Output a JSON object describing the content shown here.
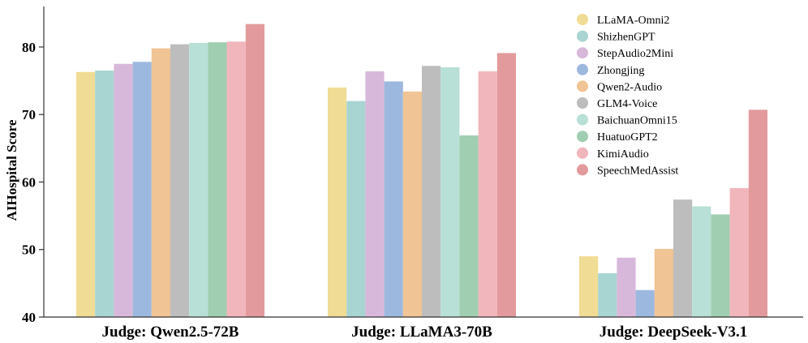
{
  "chart_data": {
    "type": "bar",
    "title": "",
    "xlabel": "",
    "ylabel": "AIHospital Score",
    "ylim": [
      40,
      86
    ],
    "yticks": [
      40,
      50,
      60,
      70,
      80
    ],
    "grid": false,
    "legend_position": "top-right",
    "categories": [
      "Judge: Qwen2.5-72B",
      "Judge: LLaMA3-70B",
      "Judge: DeepSeek-V3.1"
    ],
    "series": [
      {
        "name": "LLaMA-Omni2",
        "color": "#f0dc94",
        "values": [
          76.3,
          74.0,
          49.0
        ]
      },
      {
        "name": "ShizhenGPT",
        "color": "#a8d4d2",
        "values": [
          76.5,
          72.0,
          46.5
        ]
      },
      {
        "name": "StepAudio2Mini",
        "color": "#d8b8da",
        "values": [
          77.5,
          76.4,
          48.8
        ]
      },
      {
        "name": "Zhongjing",
        "color": "#9db8de",
        "values": [
          77.8,
          74.9,
          44.0
        ]
      },
      {
        "name": "Qwen2-Audio",
        "color": "#f0c494",
        "values": [
          79.8,
          73.4,
          50.1
        ]
      },
      {
        "name": "GLM4-Voice",
        "color": "#bdbdbd",
        "values": [
          80.4,
          77.2,
          57.4
        ]
      },
      {
        "name": "BaichuanOmni15",
        "color": "#b8e0d6",
        "values": [
          80.6,
          77.0,
          56.4
        ]
      },
      {
        "name": "HuatuoGPT2",
        "color": "#a0ceb0",
        "values": [
          80.7,
          66.9,
          55.2
        ]
      },
      {
        "name": "KimiAudio",
        "color": "#f1b6bc",
        "values": [
          80.8,
          76.4,
          59.1
        ]
      },
      {
        "name": "SpeechMedAssist",
        "color": "#e39a9c",
        "values": [
          83.4,
          79.1,
          70.7
        ]
      }
    ]
  }
}
